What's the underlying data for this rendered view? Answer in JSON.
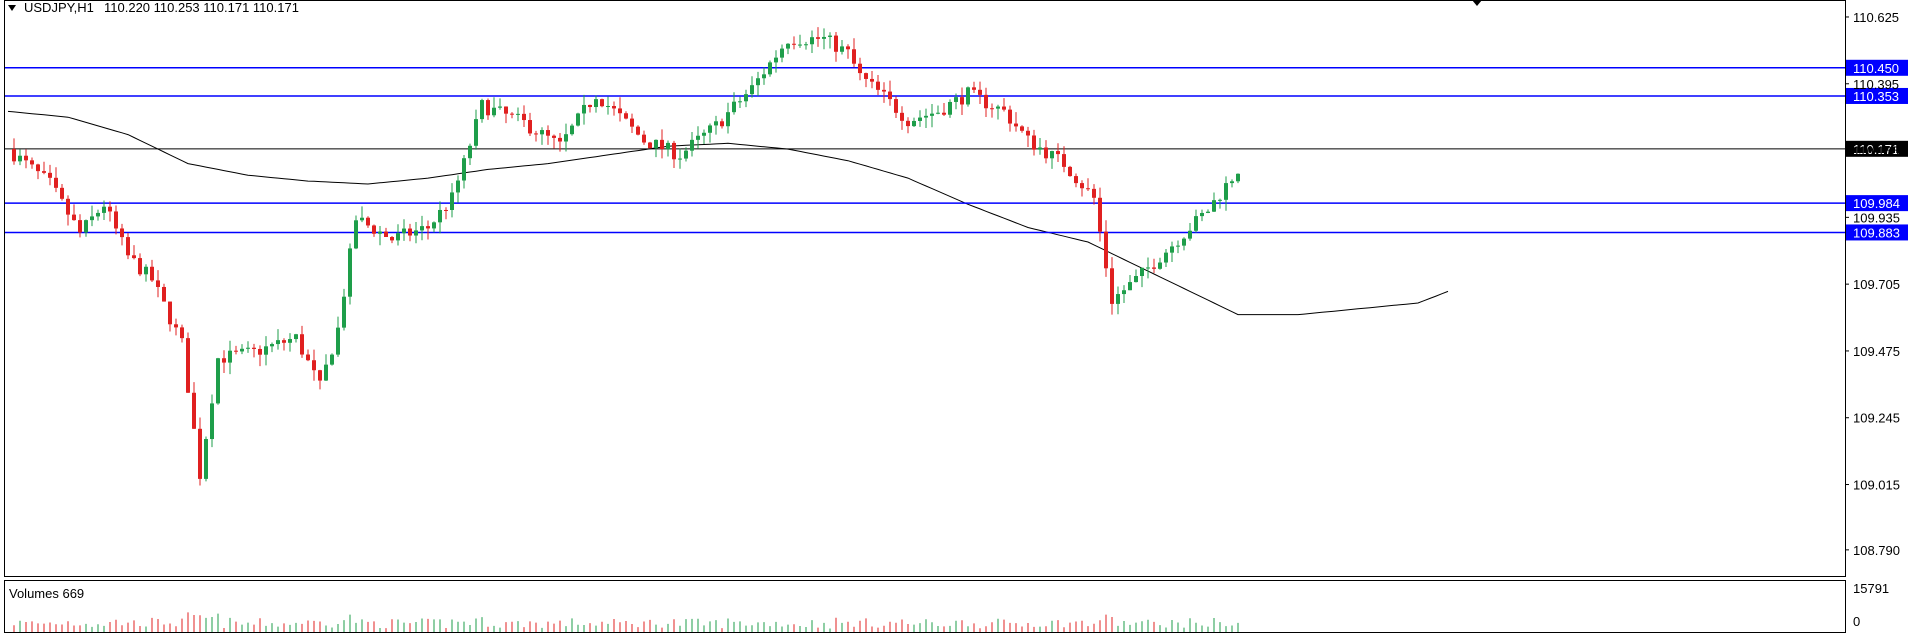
{
  "header": {
    "symbol_tf": "USDJPY,H1",
    "ohlc": "110.220 110.253 110.171 110.171"
  },
  "volume_panel": {
    "label": "Volumes 669",
    "max_label": "15791",
    "zero_label": "0"
  },
  "colors": {
    "bull": "#1e9e4a",
    "bear": "#e02020",
    "level_line": "#0000ff",
    "level_label_bg": "#0000ff",
    "current_price_bg": "#000000",
    "ma": "#000000"
  },
  "chart_data": {
    "type": "candlestick",
    "symbol": "USDJPY",
    "timeframe": "H1",
    "ylim": [
      108.7,
      110.68
    ],
    "yticks": [
      "110.625",
      "110.395",
      "110.165",
      "109.935",
      "109.705",
      "109.475",
      "109.245",
      "109.015",
      "108.790"
    ],
    "last_price": "110.171",
    "levels": [
      "110.450",
      "110.353",
      "109.984",
      "109.883"
    ],
    "level_values": [
      110.45,
      110.353,
      109.984,
      109.883
    ],
    "n_bars": 250,
    "price_path": [
      [
        0,
        110.17
      ],
      [
        7,
        110.05
      ],
      [
        12,
        109.88
      ],
      [
        16,
        109.98
      ],
      [
        20,
        109.8
      ],
      [
        24,
        109.72
      ],
      [
        29,
        109.5
      ],
      [
        32,
        109.05
      ],
      [
        35,
        109.45
      ],
      [
        41,
        109.47
      ],
      [
        48,
        109.52
      ],
      [
        52,
        109.35
      ],
      [
        55,
        109.55
      ],
      [
        58,
        109.93
      ],
      [
        64,
        109.86
      ],
      [
        70,
        109.9
      ],
      [
        74,
        110.0
      ],
      [
        76,
        110.12
      ],
      [
        79,
        110.32
      ],
      [
        86,
        110.26
      ],
      [
        92,
        110.18
      ],
      [
        98,
        110.36
      ],
      [
        106,
        110.2
      ],
      [
        112,
        110.15
      ],
      [
        118,
        110.25
      ],
      [
        124,
        110.38
      ],
      [
        130,
        110.55
      ],
      [
        136,
        110.55
      ],
      [
        140,
        110.5
      ],
      [
        142,
        110.42
      ],
      [
        146,
        110.35
      ],
      [
        150,
        110.27
      ],
      [
        155,
        110.3
      ],
      [
        160,
        110.36
      ],
      [
        166,
        110.3
      ],
      [
        170,
        110.2
      ],
      [
        176,
        110.12
      ],
      [
        181,
        110.0
      ],
      [
        184,
        109.65
      ],
      [
        188,
        109.72
      ],
      [
        191,
        109.78
      ],
      [
        196,
        109.88
      ],
      [
        200,
        109.96
      ],
      [
        205,
        110.1
      ]
    ],
    "ma_path": [
      [
        0,
        110.3
      ],
      [
        10,
        110.28
      ],
      [
        20,
        110.22
      ],
      [
        30,
        110.12
      ],
      [
        40,
        110.08
      ],
      [
        50,
        110.06
      ],
      [
        60,
        110.05
      ],
      [
        70,
        110.07
      ],
      [
        80,
        110.1
      ],
      [
        90,
        110.12
      ],
      [
        100,
        110.15
      ],
      [
        110,
        110.18
      ],
      [
        120,
        110.19
      ],
      [
        130,
        110.17
      ],
      [
        140,
        110.13
      ],
      [
        150,
        110.07
      ],
      [
        160,
        109.98
      ],
      [
        170,
        109.9
      ],
      [
        180,
        109.85
      ],
      [
        190,
        109.75
      ],
      [
        200,
        109.65
      ],
      [
        205,
        109.6
      ],
      [
        215,
        109.6
      ],
      [
        225,
        109.62
      ],
      [
        235,
        109.64
      ],
      [
        240,
        109.68
      ]
    ]
  }
}
